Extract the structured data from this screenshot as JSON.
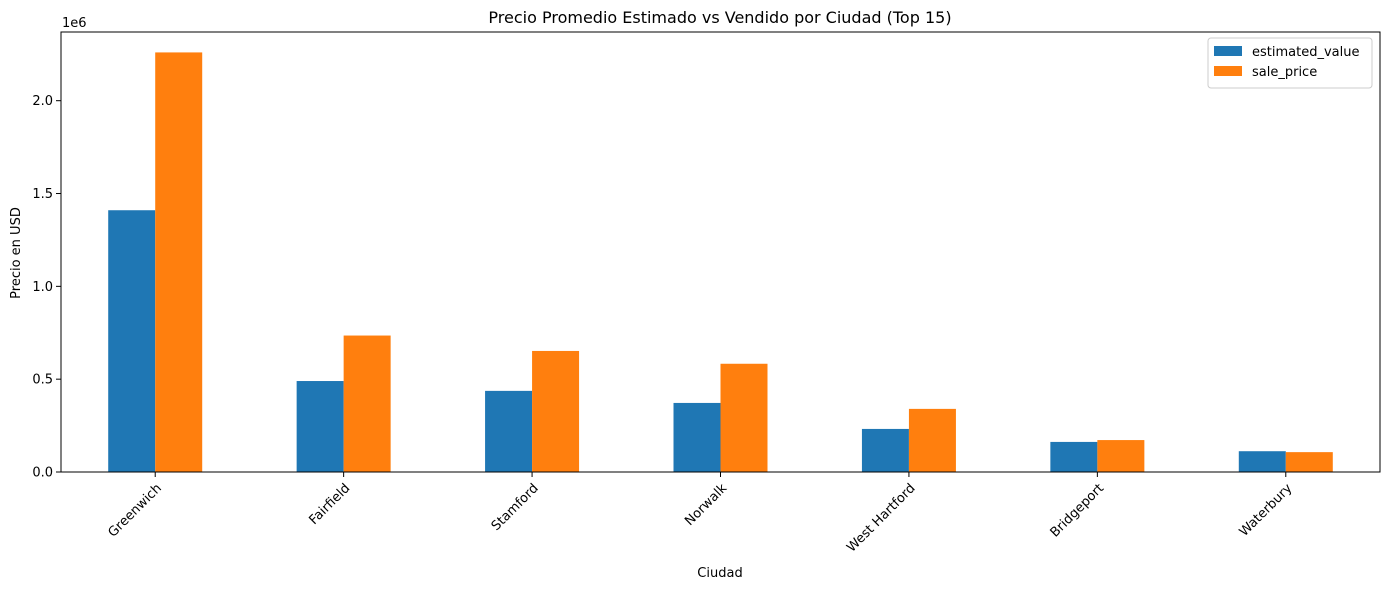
{
  "chart_data": {
    "type": "bar",
    "title": "Precio Promedio Estimado vs Vendido por Ciudad (Top 15)",
    "xlabel": "Ciudad",
    "ylabel": "Precio en USD",
    "y_offset_label": "1e6",
    "ylim": [
      0,
      2370000
    ],
    "yticks": [
      0,
      500000,
      1000000,
      1500000,
      2000000
    ],
    "ytick_labels": [
      "0.0",
      "0.5",
      "1.0",
      "1.5",
      "2.0"
    ],
    "categories": [
      "Greenwich",
      "Fairfield",
      "Stamford",
      "Norwalk",
      "West Hartford",
      "Bridgeport",
      "Waterbury"
    ],
    "series": [
      {
        "name": "estimated_value",
        "color": "#1f77b4",
        "values": [
          1410000,
          490000,
          437000,
          372000,
          232000,
          162000,
          112000
        ]
      },
      {
        "name": "sale_price",
        "color": "#ff7f0e",
        "values": [
          2260000,
          735000,
          652000,
          583000,
          340000,
          172000,
          107000
        ]
      }
    ],
    "grid": false,
    "legend_position": "top-right"
  }
}
